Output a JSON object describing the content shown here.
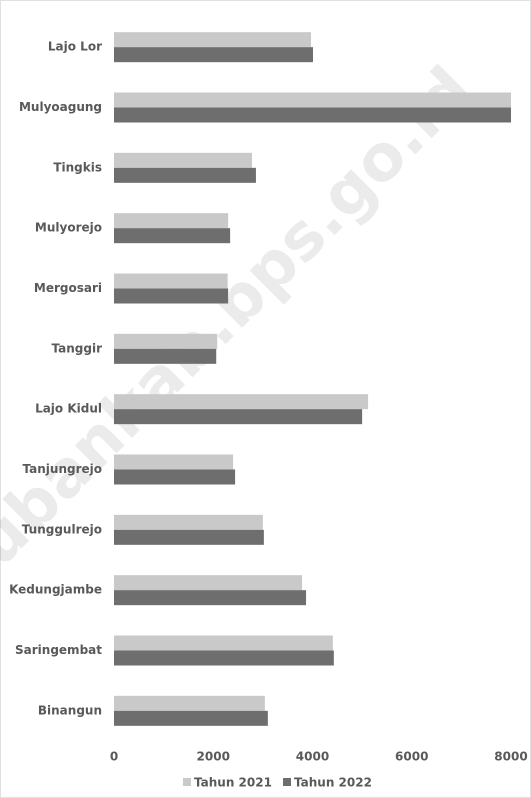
{
  "chart_data": {
    "type": "hbar",
    "categories": [
      "Lajo Lor",
      "Mulyoagung",
      "Tingkis",
      "Mulyorejo",
      "Mergosari",
      "Tanggir",
      "Lajo Kidul",
      "Tanjungrejo",
      "Tunggulrejo",
      "Kedungjambe",
      "Saringembat",
      "Binangun"
    ],
    "series": [
      {
        "name": "Tahun 2021",
        "color": "#c9c9c9",
        "values": [
          3970,
          8000,
          2780,
          2300,
          2290,
          2080,
          5120,
          2400,
          3000,
          3790,
          4410,
          3040
        ]
      },
      {
        "name": "Tahun 2022",
        "color": "#6e6e6e",
        "values": [
          4010,
          8000,
          2860,
          2340,
          2300,
          2060,
          5000,
          2440,
          3020,
          3870,
          4430,
          3100
        ]
      }
    ],
    "xlim": [
      0,
      8000
    ],
    "xticks": [
      0,
      2000,
      4000,
      6000,
      8000
    ],
    "grid": false,
    "legend": "bottom",
    "watermark": "tubankab.bps.go.id"
  }
}
